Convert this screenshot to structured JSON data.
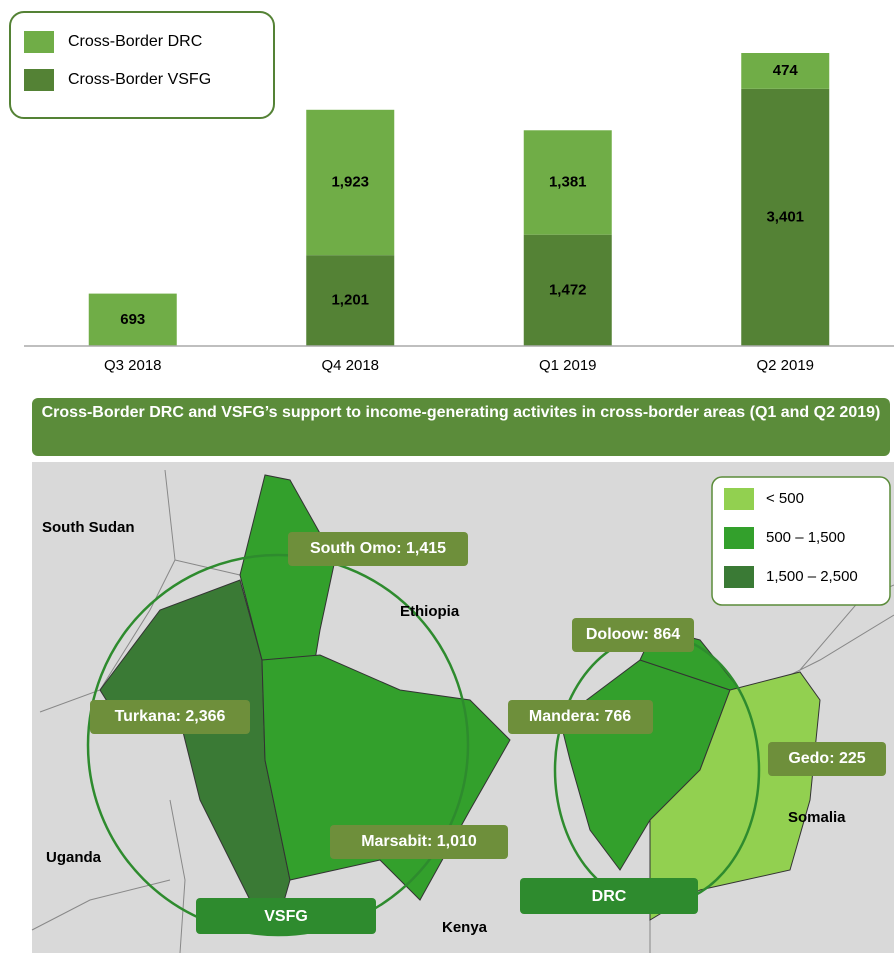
{
  "chart_data": {
    "type": "bar",
    "stacked": true,
    "categories": [
      "Q3 2018",
      "Q4 2018",
      "Q1 2019",
      "Q2 2019"
    ],
    "series": [
      {
        "name": "Cross-Border VSFG",
        "color": "#548235",
        "values": [
          null,
          1201,
          1472,
          3401
        ],
        "value_labels": [
          null,
          "1,201",
          "1,472",
          "3,401"
        ]
      },
      {
        "name": "Cross-Border DRC",
        "color": "#70ad47",
        "values": [
          693,
          1923,
          1381,
          474
        ],
        "value_labels": [
          "693",
          "1,923",
          "1,381",
          "474"
        ]
      }
    ],
    "legend": "top-left"
  },
  "map": {
    "title": "Cross-Border DRC and VSFG’s support to income-generating activites in cross-border areas (Q1 and Q2 2019)",
    "legend": [
      "< 500",
      "500 – 1,500",
      "1,500 – 2,500"
    ],
    "regions": [
      "South Omo: 1,415",
      "Turkana: 2,366",
      "Doloow: 864",
      "Mandera: 766",
      "Marsabit: 1,010",
      "Gedo: 225"
    ],
    "countries": [
      "South Sudan",
      "Ethiopia",
      "Uganda",
      "Kenya",
      "Somalia"
    ],
    "groups": [
      "VSFG",
      "DRC"
    ]
  }
}
